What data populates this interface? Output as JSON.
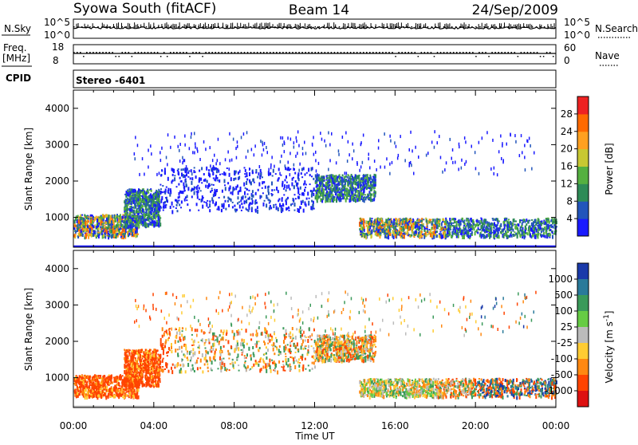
{
  "header": {
    "title_left": "Syowa South (fitACF)",
    "title_center": "Beam 14",
    "title_right": "24/Sep/2009"
  },
  "panels": {
    "nsky": {
      "label": "N.Sky",
      "left_ticks": [
        "10^5",
        "10^0"
      ],
      "right_ticks": [
        "10^5",
        "10^0"
      ],
      "right_label": "N.Search"
    },
    "freq": {
      "label_line1": "Freq.",
      "label_line2": "[MHz]",
      "left_ticks": [
        "18",
        "8"
      ],
      "right_ticks": [
        "60",
        "0"
      ],
      "right_label": "Nave"
    },
    "cpid": {
      "label": "CPID",
      "value": "Stereo -6401"
    }
  },
  "chart_data": [
    {
      "type": "heatmap",
      "name": "power",
      "ylabel": "Slant Range [km]",
      "xlabel": "",
      "x_range_hours": [
        0,
        24
      ],
      "ylim": [
        180,
        4500
      ],
      "yticks": [
        "1000",
        "2000",
        "3000",
        "4000"
      ],
      "colorbar": {
        "label": "Power [dB]",
        "ticks": [
          "4",
          "8",
          "12",
          "16",
          "20",
          "24",
          "28"
        ],
        "colors": [
          "#1a1aff",
          "#2255bb",
          "#2e8b57",
          "#55b040",
          "#c8c832",
          "#ffa020",
          "#ff6a00",
          "#ee2222"
        ]
      },
      "echo_regions": [
        {
          "t": [
            0.0,
            3.2
          ],
          "r": [
            500,
            1100
          ],
          "level": "strong"
        },
        {
          "t": [
            2.5,
            4.3
          ],
          "r": [
            800,
            1800
          ],
          "level": "medium"
        },
        {
          "t": [
            4.3,
            12.0
          ],
          "r": [
            1200,
            2400
          ],
          "level": "weak"
        },
        {
          "t": [
            12.0,
            15.0
          ],
          "r": [
            1500,
            2200
          ],
          "level": "medium"
        },
        {
          "t": [
            14.2,
            18.5
          ],
          "r": [
            500,
            1000
          ],
          "level": "strong"
        },
        {
          "t": [
            18.5,
            24.0
          ],
          "r": [
            500,
            1000
          ],
          "level": "medium"
        }
      ]
    },
    {
      "type": "heatmap",
      "name": "velocity",
      "ylabel": "Slant Range [km]",
      "xlabel": "Time UT",
      "x_range_hours": [
        0,
        24
      ],
      "ylim": [
        180,
        4500
      ],
      "yticks": [
        "1000",
        "2000",
        "3000",
        "4000"
      ],
      "xticks": [
        "00:00",
        "04:00",
        "08:00",
        "12:00",
        "16:00",
        "20:00",
        "00:00"
      ],
      "colorbar": {
        "label": "Velocity [m s-1]",
        "ticks": [
          "1000",
          "500",
          "100",
          "25",
          "-25",
          "-100",
          "-500",
          "-1000"
        ],
        "colors": [
          "#1a3aaa",
          "#2a7a9a",
          "#3a9a5a",
          "#66cc44",
          "#bbbbbb",
          "#ffcc33",
          "#ff8811",
          "#ff4400",
          "#dd1111"
        ]
      }
    }
  ]
}
